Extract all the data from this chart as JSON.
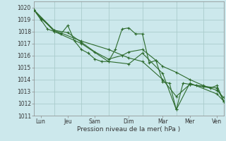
{
  "xlabel": "Pression niveau de la mer( hPa )",
  "bg_color": "#cce8ec",
  "grid_color": "#aacccc",
  "line_color": "#2d6b2d",
  "ylim": [
    1011,
    1020.5
  ],
  "xlim": [
    0,
    168
  ],
  "yticks": [
    1011,
    1012,
    1013,
    1014,
    1015,
    1016,
    1017,
    1018,
    1019,
    1020
  ],
  "xtick_positions": [
    6,
    30,
    54,
    84,
    114,
    138,
    162
  ],
  "xtick_labels": [
    "Lun",
    "Jeu",
    "Sam",
    "Dim",
    "Mar",
    "Mer",
    "Ven"
  ],
  "vlines": [
    18,
    42,
    66,
    96,
    126,
    150
  ],
  "series": [
    {
      "x": [
        0,
        6,
        12,
        18,
        24,
        30,
        36,
        42,
        48,
        54,
        60,
        66,
        72,
        78,
        84,
        90,
        96,
        102,
        108,
        114,
        120,
        126,
        132,
        138,
        144,
        150,
        156,
        162,
        168
      ],
      "y": [
        1019.8,
        1019.0,
        1018.2,
        1018.0,
        1017.8,
        1018.5,
        1017.2,
        1016.5,
        1016.2,
        1015.7,
        1015.5,
        1015.5,
        1016.5,
        1018.2,
        1018.3,
        1017.8,
        1017.8,
        1015.4,
        1015.6,
        1013.8,
        1013.7,
        1011.5,
        1013.7,
        1013.6,
        1013.5,
        1013.4,
        1013.3,
        1013.5,
        1012.2
      ]
    },
    {
      "x": [
        0,
        6,
        18,
        30,
        42,
        54,
        66,
        78,
        84,
        96,
        108,
        114,
        126,
        138,
        150,
        162,
        168
      ],
      "y": [
        1019.8,
        1019.1,
        1018.1,
        1017.9,
        1017.1,
        1016.3,
        1015.7,
        1016.0,
        1016.3,
        1016.5,
        1015.6,
        1015.1,
        1014.6,
        1014.0,
        1013.5,
        1013.1,
        1012.5
      ]
    },
    {
      "x": [
        0,
        18,
        42,
        66,
        84,
        96,
        114,
        126,
        138,
        162,
        168
      ],
      "y": [
        1019.8,
        1018.0,
        1017.0,
        1015.5,
        1015.3,
        1016.2,
        1014.5,
        1011.5,
        1013.7,
        1012.8,
        1012.2
      ]
    },
    {
      "x": [
        0,
        18,
        42,
        66,
        84,
        96,
        114,
        126,
        138,
        162,
        168
      ],
      "y": [
        1019.8,
        1018.1,
        1017.2,
        1016.5,
        1015.8,
        1015.5,
        1014.0,
        1012.6,
        1013.6,
        1013.3,
        1012.2
      ]
    }
  ]
}
